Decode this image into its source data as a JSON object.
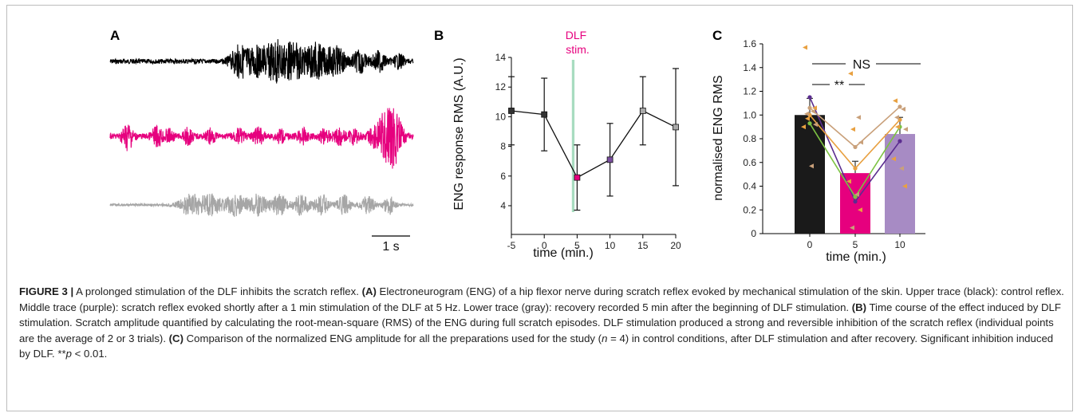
{
  "panels": {
    "a": {
      "letter": "A",
      "scale_bar_label": "1 s",
      "trace_colors": [
        "#000000",
        "#e6007e",
        "#a6a6a6"
      ]
    },
    "b": {
      "letter": "B",
      "stim_label_line1": "DLF",
      "stim_label_line2": "stim.",
      "stim_color": "#a8dcc0"
    },
    "c": {
      "letter": "C",
      "ns_label": "NS",
      "sig_label": "**"
    }
  },
  "chart_data": [
    {
      "type": "line",
      "xlabel": "time (min.)",
      "ylabel": "ENG response RMS (A.U.)",
      "xlim": [
        -5,
        20
      ],
      "ylim": [
        4,
        14
      ],
      "x_ticks": [
        -5,
        0,
        5,
        10,
        15,
        20
      ],
      "y_ticks": [
        4,
        6,
        8,
        10,
        12,
        14
      ],
      "x": [
        -5,
        0,
        5,
        10,
        15,
        20
      ],
      "y": [
        10.4,
        10.15,
        5.9,
        7.1,
        10.4,
        9.3
      ],
      "error": [
        2.3,
        2.45,
        2.2,
        2.45,
        2.3,
        3.95
      ],
      "marker_colors": [
        "#333333",
        "#333333",
        "#e6007e",
        "#7b4fa0",
        "#aaaaaa",
        "#aaaaaa"
      ],
      "stim_band": [
        4.2,
        4.6
      ]
    },
    {
      "type": "bar",
      "xlabel": "time (min.)",
      "ylabel": "normalised ENG RMS",
      "ylim": [
        0,
        1.6
      ],
      "y_ticks": [
        0,
        0.2,
        0.4,
        0.6,
        0.8,
        1.0,
        1.2,
        1.4,
        1.6
      ],
      "categories": [
        "0",
        "5",
        "10"
      ],
      "values": [
        1.0,
        0.51,
        0.84
      ],
      "errors": [
        0.14,
        0.1,
        0.14
      ],
      "bar_colors": [
        "#1a1a1a",
        "#e6007e",
        "#a78bc4"
      ],
      "series": [
        {
          "color": "#5b2d90",
          "values": [
            1.15,
            0.27,
            0.78
          ]
        },
        {
          "color": "#7cc242",
          "values": [
            0.93,
            0.31,
            0.9
          ]
        },
        {
          "color": "#e8a040",
          "values": [
            1.0,
            0.55,
            0.96
          ]
        },
        {
          "color": "#c9a07a",
          "values": [
            1.06,
            0.73,
            1.07
          ]
        }
      ],
      "points": [
        [
          1.57,
          1.03,
          0.97,
          0.92,
          0.9,
          0.57,
          1.06,
          1.01
        ],
        [
          1.35,
          0.98,
          0.88,
          0.77,
          0.44,
          0.33,
          0.2,
          0.05
        ],
        [
          1.12,
          1.05,
          0.9,
          0.88,
          0.63,
          0.55,
          0.4,
          0.98
        ]
      ]
    }
  ],
  "caption": {
    "figure_label": "FIGURE 3 |",
    "intro": " A prolonged stimulation of the DLF inhibits the scratch reflex. ",
    "a_label": "(A)",
    "a_text": " Electroneurogram (ENG) of a hip flexor nerve during scratch reflex evoked by mechanical stimulation of the skin. Upper trace (black): control reflex. Middle trace (purple): scratch reflex evoked shortly after a 1 min stimulation of the DLF at 5 Hz. Lower trace (gray): recovery recorded 5 min after the beginning of DLF stimulation. ",
    "b_label": "(B)",
    "b_text": " Time course of the effect induced by DLF stimulation. Scratch amplitude quantified by calculating the root-mean-square (RMS) of the ENG during full scratch episodes. DLF stimulation produced a strong and reversible inhibition of the scratch reflex (individual points are the average of 2 or 3 trials). ",
    "c_label": "(C)",
    "c_text_1": " Comparison of the normalized ENG amplitude for all the preparations used for the study (",
    "c_n_var": "n",
    "c_text_2": " = 4) in control conditions, after DLF stimulation and after recovery. Significant inhibition induced by DLF. **",
    "c_p_var": "p",
    "c_text_3": " < 0.01."
  }
}
